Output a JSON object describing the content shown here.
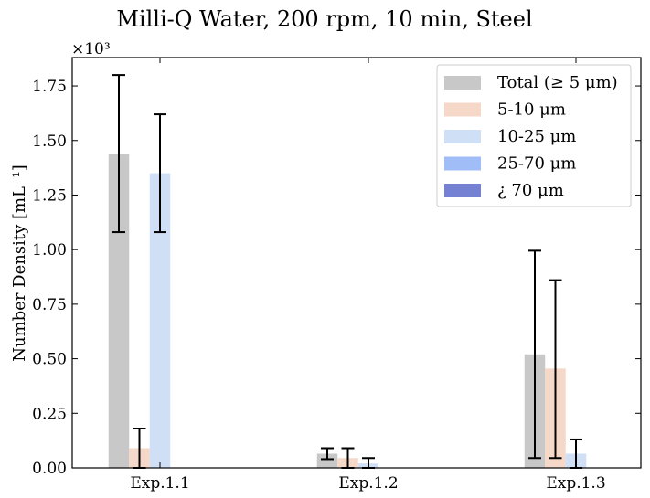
{
  "chart_data": {
    "type": "bar",
    "title": "Milli-Q Water, 200 rpm, 10 min, Steel",
    "xlabel": "",
    "ylabel": "Number Density [mL⁻¹]",
    "y_multiplier_label": "×10³",
    "categories": [
      "Exp.1.1",
      "Exp.1.2",
      "Exp.1.3"
    ],
    "ylim": [
      0,
      1.88
    ],
    "yticks": [
      "0.00",
      "0.25",
      "0.50",
      "0.75",
      "1.00",
      "1.25",
      "1.50",
      "1.75"
    ],
    "grid": false,
    "legend_position": "top-right",
    "series": [
      {
        "name": "Total (≥ 5 μm)",
        "color": "#c8c8c8",
        "values": [
          1.44,
          0.065,
          0.52
        ],
        "error_low": [
          1.08,
          0.04,
          0.045
        ],
        "error_high": [
          1.8,
          0.09,
          0.995
        ]
      },
      {
        "name": "5-10 μm",
        "color": "#f6d8c8",
        "values": [
          0.09,
          0.045,
          0.455
        ],
        "error_low": [
          0.0,
          0.0,
          0.045
        ],
        "error_high": [
          0.18,
          0.09,
          0.86
        ]
      },
      {
        "name": "10-25 μm",
        "color": "#cfdff6",
        "values": [
          1.35,
          0.02,
          0.065
        ],
        "error_low": [
          1.08,
          0.0,
          0.0
        ],
        "error_high": [
          1.62,
          0.045,
          0.13
        ]
      },
      {
        "name": "25-70 μm",
        "color": "#a0bdf7",
        "values": [
          0.0,
          0.0,
          0.0
        ]
      },
      {
        "name": "¿ 70 μm",
        "color": "#7581d2",
        "values": [
          0.0,
          0.0,
          0.0
        ]
      }
    ]
  }
}
